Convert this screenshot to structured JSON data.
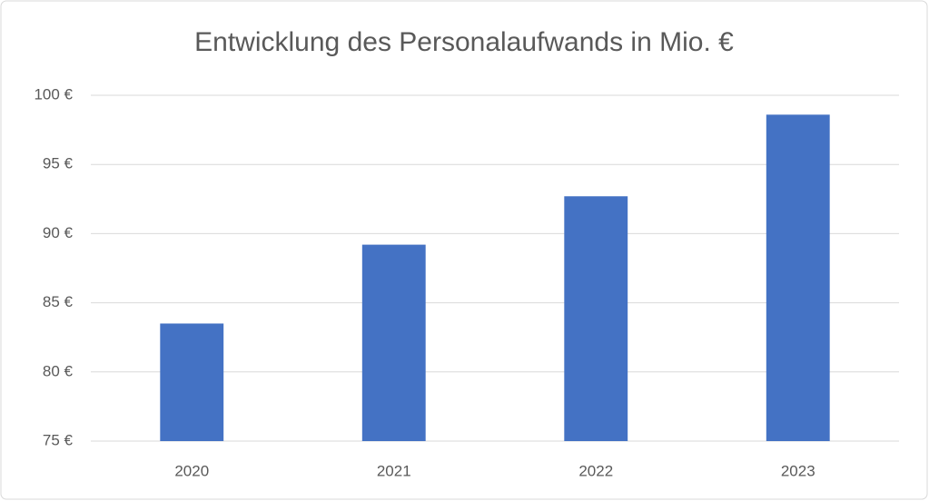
{
  "chart_data": {
    "type": "bar",
    "title": "Entwicklung des Personalaufwands in Mio. €",
    "categories": [
      "2020",
      "2021",
      "2022",
      "2023"
    ],
    "values": [
      83.5,
      89.2,
      92.7,
      98.6
    ],
    "color": "#4472c4",
    "ylim": [
      75,
      100
    ],
    "yticks": [
      {
        "value": 75,
        "label": "75 €"
      },
      {
        "value": 80,
        "label": "80 €"
      },
      {
        "value": 85,
        "label": "85 €"
      },
      {
        "value": 90,
        "label": "90 €"
      },
      {
        "value": 95,
        "label": "95 €"
      },
      {
        "value": 100,
        "label": "100 €"
      }
    ],
    "grid": true
  }
}
